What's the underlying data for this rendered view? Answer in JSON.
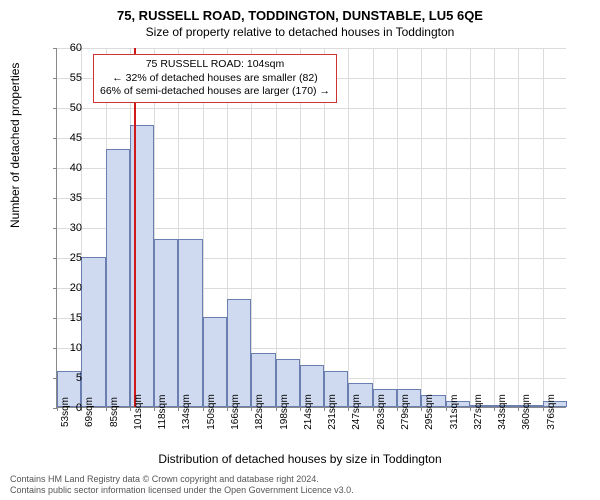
{
  "title_main": "75, RUSSELL ROAD, TODDINGTON, DUNSTABLE, LU5 6QE",
  "title_sub": "Size of property relative to detached houses in Toddington",
  "y_axis_label": "Number of detached properties",
  "x_axis_label": "Distribution of detached houses by size in Toddington",
  "chart": {
    "type": "histogram",
    "background_color": "#ffffff",
    "grid_color": "#dcdcdc",
    "axis_color": "#888888",
    "bar_fill": "#cfd9ef",
    "bar_border": "#6a7fb0",
    "marker_color": "#d11919",
    "yticks": [
      0,
      5,
      10,
      15,
      20,
      25,
      30,
      35,
      40,
      45,
      50,
      55,
      60
    ],
    "ymax": 60,
    "xticks": [
      "53sqm",
      "69sqm",
      "85sqm",
      "101sqm",
      "118sqm",
      "134sqm",
      "150sqm",
      "166sqm",
      "182sqm",
      "198sqm",
      "214sqm",
      "231sqm",
      "247sqm",
      "263sqm",
      "279sqm",
      "295sqm",
      "311sqm",
      "327sqm",
      "343sqm",
      "360sqm",
      "376sqm"
    ],
    "bar_values": [
      6,
      25,
      43,
      47,
      28,
      28,
      15,
      18,
      9,
      8,
      7,
      6,
      4,
      3,
      3,
      2,
      1,
      0,
      0,
      0,
      1
    ],
    "marker_index": 3.15,
    "annotation": {
      "line1": "75 RUSSELL ROAD: 104sqm",
      "line2": "← 32% of detached houses are smaller (82)",
      "line3": "66% of semi-detached houses are larger (170) →"
    }
  },
  "footer_line1": "Contains HM Land Registry data © Crown copyright and database right 2024.",
  "footer_line2": "Contains public sector information licensed under the Open Government Licence v3.0."
}
